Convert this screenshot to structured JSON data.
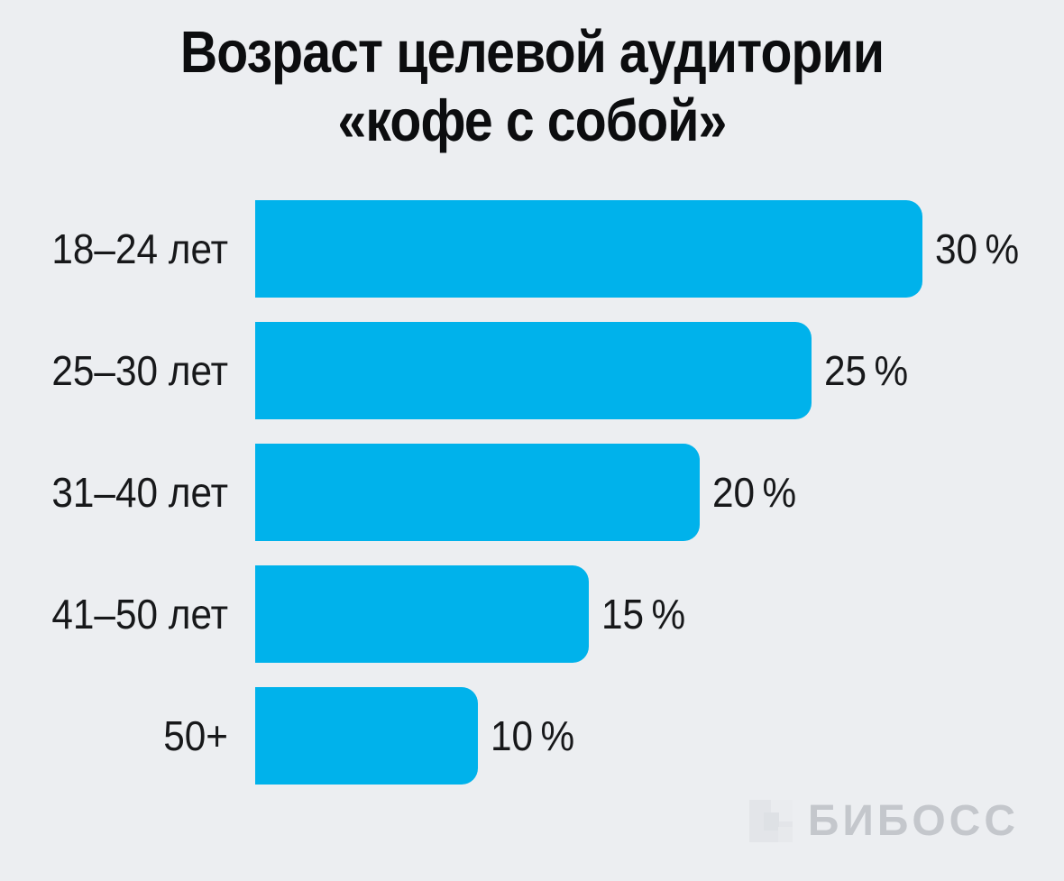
{
  "title": {
    "line1": "Возраст целевой аудитории",
    "line2": "«кофе с собой»"
  },
  "chart_data": {
    "type": "bar",
    "orientation": "horizontal",
    "title": "Возраст целевой аудитории «кофе с собой»",
    "categories": [
      "18–24 лет",
      "25–30 лет",
      "31–40 лет",
      "41–50 лет",
      "50+"
    ],
    "values": [
      30,
      25,
      20,
      15,
      10
    ],
    "value_labels": [
      "30 %",
      "25 %",
      "20 %",
      "15 %",
      "10 %"
    ],
    "unit": "%",
    "xlim": [
      0,
      30
    ],
    "grid": false,
    "legend": false,
    "bar_color": "#00b2eb",
    "background_color": "#eceef1",
    "text_color": "#17181a"
  },
  "watermark": {
    "text": "БИБОСС"
  }
}
